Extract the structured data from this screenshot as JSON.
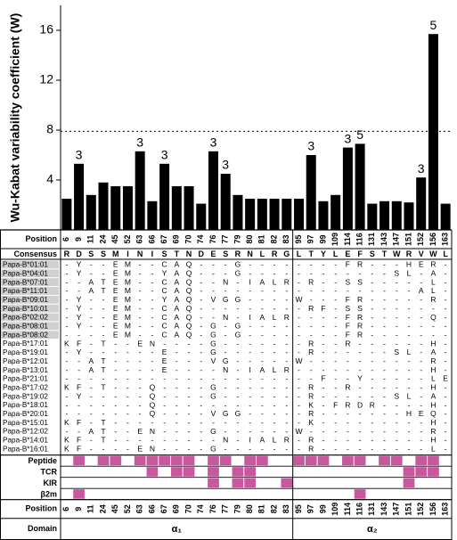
{
  "chart_data": {
    "type": "bar",
    "y_label": "Wu-Kabat variability coefficient (W)",
    "categories": [
      "6",
      "9",
      "11",
      "24",
      "45",
      "52",
      "63",
      "66",
      "67",
      "69",
      "70",
      "74",
      "76",
      "77",
      "79",
      "80",
      "81",
      "82",
      "83",
      "95",
      "97",
      "99",
      "109",
      "114",
      "116",
      "131",
      "143",
      "147",
      "151",
      "152",
      "156",
      "163"
    ],
    "values": [
      2.5,
      5.3,
      2.8,
      3.8,
      3.5,
      3.5,
      6.3,
      2.3,
      5.3,
      3.5,
      3.5,
      2.1,
      6.3,
      4.5,
      2.8,
      2.5,
      2.5,
      2.5,
      2.5,
      2.5,
      6.0,
      2.3,
      2.8,
      6.6,
      6.9,
      2.1,
      2.3,
      2.3,
      2.2,
      4.2,
      15.7,
      2.1
    ],
    "bar_labels": [
      null,
      3,
      null,
      null,
      null,
      null,
      3,
      null,
      3,
      null,
      null,
      null,
      3,
      3,
      null,
      null,
      null,
      null,
      null,
      null,
      3,
      null,
      null,
      3,
      5,
      null,
      null,
      null,
      null,
      3,
      5,
      null
    ],
    "color": "#000000",
    "ylim": [
      0,
      18
    ],
    "yticks": [
      4,
      8,
      12,
      16
    ],
    "reference_line": 7.9
  },
  "table": {
    "position_label": "Position",
    "consensus_label": "Consensus",
    "domain_label": "Domain",
    "consensus": [
      "R",
      "D",
      "S",
      "S",
      "M",
      "I",
      "N",
      "I",
      "S",
      "T",
      "N",
      "D",
      "E",
      "S",
      "R",
      "N",
      "L",
      "R",
      "G",
      "L",
      "T",
      "Y",
      "L",
      "E",
      "F",
      "S",
      "T",
      "W",
      "R",
      "V",
      "W",
      "L"
    ],
    "alleles": [
      {
        "name": "Papa-B*01:01",
        "highlight": true,
        "residues": [
          "-",
          "Y",
          "-",
          "-",
          "E",
          "M",
          "-",
          "-",
          "C",
          "A",
          "Q",
          "-",
          "-",
          "-",
          "G",
          "-",
          "-",
          "-",
          "-",
          "-",
          "-",
          "-",
          "-",
          "F",
          "R",
          "-",
          "-",
          "-",
          "H",
          "E",
          "R",
          "-"
        ]
      },
      {
        "name": "Papa-B*04:01",
        "highlight": true,
        "residues": [
          "-",
          "Y",
          "-",
          "-",
          "E",
          "M",
          "-",
          "-",
          "Y",
          "A",
          "Q",
          "-",
          "-",
          "-",
          "G",
          "-",
          "-",
          "-",
          "-",
          "-",
          "-",
          "-",
          "-",
          "-",
          "-",
          "-",
          "-",
          "S",
          "L",
          "-",
          "A",
          "-"
        ]
      },
      {
        "name": "Papa-B*07:01",
        "highlight": true,
        "residues": [
          "-",
          "-",
          "A",
          "T",
          "E",
          "M",
          "-",
          "-",
          "C",
          "A",
          "Q",
          "-",
          "-",
          "N",
          "-",
          "I",
          "A",
          "L",
          "R",
          "-",
          "R",
          "-",
          "-",
          "S",
          "S",
          "-",
          "-",
          "-",
          "-",
          "-",
          "L",
          "-"
        ]
      },
      {
        "name": "Papa-B*11:01",
        "highlight": true,
        "residues": [
          "-",
          "-",
          "A",
          "T",
          "E",
          "M",
          "-",
          "-",
          "C",
          "A",
          "Q",
          "-",
          "-",
          "-",
          "-",
          "-",
          "-",
          "-",
          "-",
          "-",
          "-",
          "-",
          "-",
          "-",
          "-",
          "-",
          "-",
          "-",
          "-",
          "A",
          "L",
          "-"
        ]
      },
      {
        "name": "Papa-B*09:01",
        "highlight": true,
        "residues": [
          "-",
          "Y",
          "-",
          "-",
          "E",
          "M",
          "-",
          "-",
          "Y",
          "A",
          "Q",
          "-",
          "V",
          "G",
          "G",
          "-",
          "-",
          "-",
          "-",
          "W",
          "-",
          "-",
          "-",
          "F",
          "R",
          "-",
          "-",
          "-",
          "-",
          "-",
          "R",
          "-"
        ]
      },
      {
        "name": "Papa-B*10:01",
        "highlight": true,
        "residues": [
          "-",
          "Y",
          "-",
          "-",
          "E",
          "M",
          "-",
          "-",
          "C",
          "A",
          "Q",
          "-",
          "-",
          "-",
          "-",
          "-",
          "-",
          "-",
          "-",
          "-",
          "R",
          "F",
          "-",
          "S",
          "S",
          "-",
          "-",
          "-",
          "-",
          "-",
          "-",
          "-"
        ]
      },
      {
        "name": "Papa-B*02:02",
        "highlight": true,
        "residues": [
          "-",
          "Y",
          "-",
          "-",
          "E",
          "M",
          "-",
          "-",
          "C",
          "A",
          "Q",
          "-",
          "-",
          "N",
          "-",
          "I",
          "A",
          "L",
          "R",
          "-",
          "-",
          "-",
          "-",
          "F",
          "R",
          "-",
          "-",
          "-",
          "-",
          "-",
          "Q",
          "-"
        ]
      },
      {
        "name": "Papa-B*08:01",
        "highlight": true,
        "residues": [
          "-",
          "Y",
          "-",
          "-",
          "E",
          "M",
          "-",
          "-",
          "C",
          "A",
          "Q",
          "-",
          "G",
          "-",
          "G",
          "-",
          "-",
          "-",
          "-",
          "-",
          "-",
          "-",
          "-",
          "F",
          "R",
          "-",
          "-",
          "-",
          "-",
          "-",
          "-",
          "-"
        ]
      },
      {
        "name": "Papa-B*08:02",
        "highlight": true,
        "residues": [
          "-",
          "-",
          "-",
          "-",
          "E",
          "M",
          "-",
          "-",
          "C",
          "A",
          "Q",
          "-",
          "G",
          "-",
          "G",
          "-",
          "-",
          "-",
          "-",
          "-",
          "-",
          "-",
          "-",
          "F",
          "R",
          "-",
          "-",
          "-",
          "-",
          "-",
          "-",
          "-"
        ]
      },
      {
        "name": "Papa-B*17:01",
        "highlight": false,
        "residues": [
          "K",
          "F",
          "-",
          "T",
          "-",
          "-",
          "E",
          "N",
          "-",
          "-",
          "-",
          "-",
          "G",
          "-",
          "-",
          "-",
          "-",
          "-",
          "-",
          "-",
          "R",
          "-",
          "-",
          "R",
          "-",
          "-",
          "-",
          "-",
          "-",
          "-",
          "H",
          "-"
        ]
      },
      {
        "name": "Papa-B*19:01",
        "highlight": false,
        "residues": [
          "-",
          "Y",
          "-",
          "-",
          "-",
          "-",
          "-",
          "-",
          "E",
          "-",
          "-",
          "-",
          "G",
          "-",
          "-",
          "-",
          "-",
          "-",
          "-",
          "-",
          "R",
          "-",
          "-",
          "-",
          "-",
          "-",
          "-",
          "S",
          "L",
          "-",
          "A",
          "-"
        ]
      },
      {
        "name": "Papa-B*12:01",
        "highlight": false,
        "residues": [
          "-",
          "-",
          "A",
          "T",
          "-",
          "-",
          "-",
          "-",
          "E",
          "-",
          "-",
          "-",
          "V",
          "G",
          "-",
          "-",
          "-",
          "-",
          "-",
          "W",
          "-",
          "-",
          "-",
          "-",
          "-",
          "-",
          "-",
          "-",
          "-",
          "-",
          "R",
          "-"
        ]
      },
      {
        "name": "Papa-B*13:01",
        "highlight": false,
        "residues": [
          "-",
          "-",
          "A",
          "T",
          "-",
          "-",
          "-",
          "-",
          "E",
          "-",
          "-",
          "-",
          "-",
          "N",
          "-",
          "I",
          "A",
          "L",
          "R",
          "-",
          "-",
          "-",
          "-",
          "-",
          "-",
          "-",
          "-",
          "-",
          "-",
          "-",
          "H",
          "-"
        ]
      },
      {
        "name": "Papa-B*21:01",
        "highlight": false,
        "residues": [
          "-",
          "-",
          "-",
          "-",
          "-",
          "-",
          "-",
          "-",
          "-",
          "-",
          "-",
          "-",
          "-",
          "-",
          "-",
          "-",
          "-",
          "-",
          "-",
          "-",
          "-",
          "F",
          "-",
          "-",
          "Y",
          "-",
          "-",
          "-",
          "-",
          "-",
          "L",
          "E"
        ]
      },
      {
        "name": "Papa-B*17:02",
        "highlight": false,
        "residues": [
          "K",
          "F",
          "-",
          "T",
          "-",
          "-",
          "-",
          "Q",
          "-",
          "-",
          "-",
          "-",
          "G",
          "-",
          "-",
          "-",
          "-",
          "-",
          "-",
          "-",
          "R",
          "-",
          "-",
          "R",
          "-",
          "-",
          "-",
          "-",
          "-",
          "-",
          "H",
          "-"
        ]
      },
      {
        "name": "Papa-B*19:02",
        "highlight": false,
        "residues": [
          "-",
          "Y",
          "-",
          "-",
          "-",
          "-",
          "-",
          "Q",
          "-",
          "-",
          "-",
          "-",
          "G",
          "-",
          "-",
          "-",
          "-",
          "-",
          "-",
          "-",
          "R",
          "-",
          "-",
          "-",
          "-",
          "-",
          "-",
          "S",
          "L",
          "-",
          "A",
          "-"
        ]
      },
      {
        "name": "Papa-B*18:01",
        "highlight": false,
        "residues": [
          "-",
          "-",
          "-",
          "-",
          "-",
          "-",
          "-",
          "Q",
          "-",
          "-",
          "-",
          "-",
          "-",
          "-",
          "-",
          "-",
          "-",
          "-",
          "-",
          "-",
          "K",
          "-",
          "F",
          "R",
          "D",
          "R",
          "-",
          "-",
          "-",
          "-",
          "H",
          "-"
        ]
      },
      {
        "name": "Papa-B*20:01",
        "highlight": false,
        "residues": [
          "-",
          "-",
          "-",
          "-",
          "-",
          "-",
          "-",
          "Q",
          "-",
          "-",
          "-",
          "-",
          "V",
          "G",
          "G",
          "-",
          "-",
          "-",
          "-",
          "-",
          "R",
          "-",
          "-",
          "-",
          "-",
          "-",
          "-",
          "-",
          "H",
          "E",
          "Q",
          "-"
        ]
      },
      {
        "name": "Papa-B*15:01",
        "highlight": false,
        "residues": [
          "K",
          "F",
          "-",
          "T",
          "-",
          "-",
          "-",
          "-",
          "-",
          "-",
          "-",
          "-",
          "-",
          "-",
          "-",
          "-",
          "-",
          "-",
          "-",
          "-",
          "K",
          "-",
          "-",
          "-",
          "-",
          "-",
          "-",
          "-",
          "-",
          "-",
          "H",
          "-"
        ]
      },
      {
        "name": "Papa-B*12:02",
        "highlight": false,
        "residues": [
          "-",
          "-",
          "A",
          "T",
          "-",
          "-",
          "E",
          "N",
          "-",
          "-",
          "-",
          "-",
          "G",
          "-",
          "-",
          "-",
          "-",
          "-",
          "-",
          "W",
          "-",
          "-",
          "-",
          "-",
          "-",
          "-",
          "-",
          "-",
          "-",
          "-",
          "R",
          "-"
        ]
      },
      {
        "name": "Papa-B*14:01",
        "highlight": false,
        "residues": [
          "K",
          "F",
          "-",
          "T",
          "-",
          "-",
          "-",
          "-",
          "-",
          "-",
          "-",
          "-",
          "-",
          "N",
          "-",
          "I",
          "A",
          "L",
          "R",
          "-",
          "R",
          "-",
          "-",
          "-",
          "-",
          "-",
          "-",
          "-",
          "-",
          "-",
          "H",
          "-"
        ]
      },
      {
        "name": "Papa-B*16:01",
        "highlight": false,
        "residues": [
          "K",
          "F",
          "-",
          "-",
          "-",
          "-",
          "E",
          "N",
          "-",
          "-",
          "-",
          "-",
          "G",
          "-",
          "-",
          "-",
          "-",
          "-",
          "-",
          "-",
          "R",
          "-",
          "-",
          "-",
          "-",
          "-",
          "-",
          "-",
          "-",
          "-",
          "L",
          "-"
        ]
      }
    ],
    "functions": [
      {
        "name": "Peptide",
        "color": "#c9579e",
        "contacts": [
          false,
          true,
          false,
          true,
          true,
          false,
          true,
          true,
          true,
          true,
          true,
          false,
          true,
          true,
          false,
          true,
          true,
          false,
          false,
          true,
          true,
          true,
          false,
          true,
          true,
          false,
          true,
          true,
          false,
          true,
          true,
          false
        ]
      },
      {
        "name": "TCR",
        "color": "#c9579e",
        "contacts": [
          false,
          false,
          false,
          false,
          false,
          false,
          false,
          true,
          false,
          true,
          true,
          false,
          true,
          false,
          true,
          true,
          false,
          false,
          false,
          false,
          false,
          false,
          false,
          false,
          false,
          false,
          false,
          false,
          true,
          true,
          true,
          false
        ]
      },
      {
        "name": "KIR",
        "color": "#c9579e",
        "contacts": [
          false,
          false,
          false,
          false,
          false,
          false,
          false,
          false,
          false,
          false,
          false,
          false,
          true,
          false,
          true,
          true,
          false,
          false,
          true,
          false,
          false,
          false,
          false,
          false,
          false,
          false,
          false,
          false,
          true,
          false,
          false,
          false
        ]
      },
      {
        "name": "β2m",
        "color": "#c9579e",
        "contacts": [
          false,
          true,
          false,
          false,
          false,
          false,
          false,
          false,
          false,
          false,
          false,
          false,
          false,
          false,
          false,
          false,
          false,
          false,
          false,
          false,
          false,
          false,
          false,
          false,
          true,
          false,
          false,
          false,
          false,
          false,
          false,
          false
        ]
      }
    ],
    "domains": [
      {
        "name": "α₁",
        "span": 19
      },
      {
        "name": "α₂",
        "span": 13
      }
    ]
  }
}
